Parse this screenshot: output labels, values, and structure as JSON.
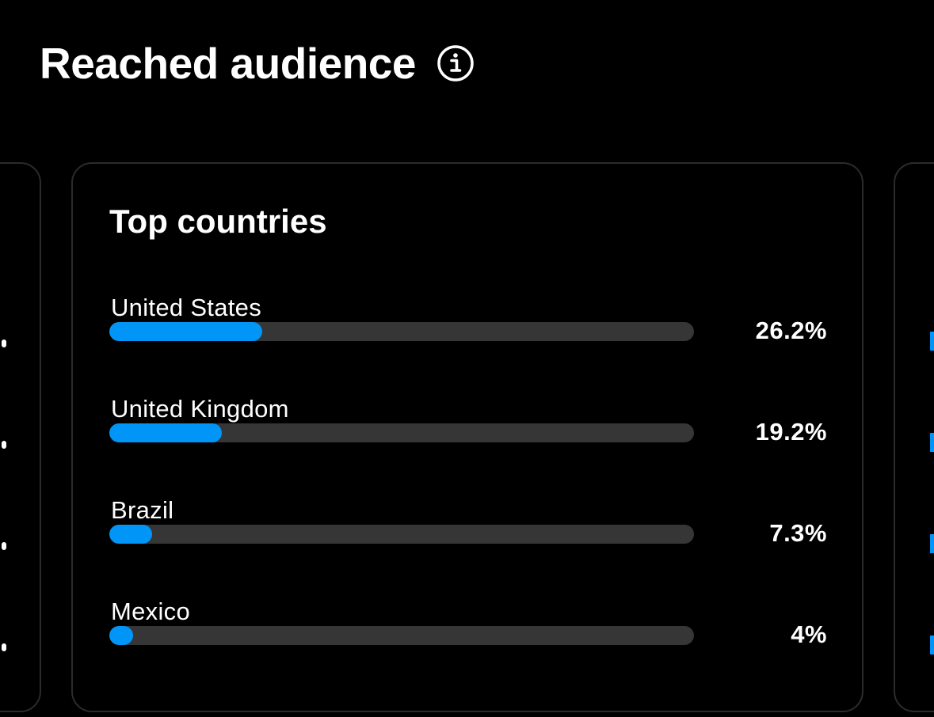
{
  "section": {
    "title": "Reached audience",
    "info_icon": "info-circle-icon"
  },
  "top_countries": {
    "title": "Top countries",
    "items": [
      {
        "label": "United States",
        "percent_text": "26.2%",
        "value": 26.2
      },
      {
        "label": "United Kingdom",
        "percent_text": "19.2%",
        "value": 19.2
      },
      {
        "label": "Brazil",
        "percent_text": "7.3%",
        "value": 7.3
      },
      {
        "label": "Mexico",
        "percent_text": "4%",
        "value": 4
      }
    ]
  },
  "colors": {
    "background": "#000000",
    "bar_fill": "#0095f6",
    "bar_track": "#363636",
    "card_border": "#2b2b2b",
    "text": "#ffffff"
  },
  "chart_data": {
    "type": "bar",
    "title": "Top countries",
    "categories": [
      "United States",
      "United Kingdom",
      "Brazil",
      "Mexico"
    ],
    "values": [
      26.2,
      19.2,
      7.3,
      4
    ],
    "ylim": [
      0,
      100
    ],
    "orientation": "horizontal"
  }
}
